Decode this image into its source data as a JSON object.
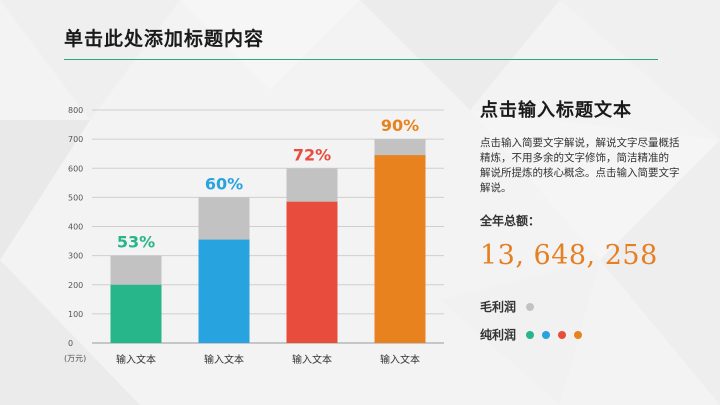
{
  "slide": {
    "title": "单击此处添加标题内容"
  },
  "panel": {
    "title": "点击输入标题文本",
    "body": "点击输入简要文字解说，解说文字尽量概括精炼，不用多余的文字修饰，简洁精准的 解说所提炼的核心概念。点击输入简要文字解说。",
    "total_label": "全年总额：",
    "total_value": "13, 648, 258"
  },
  "legend": {
    "gross_label": "毛利润",
    "net_label": "纯利润"
  },
  "colors": {
    "accent": "#2ea77d",
    "gross": "#c2c2c2",
    "bar_colors": [
      "#27b58a",
      "#27a3e0",
      "#e84c3d",
      "#e8821f"
    ]
  },
  "chart_data": {
    "type": "bar",
    "stacked_overlay": true,
    "categories": [
      "输入文本",
      "输入文本",
      "输入文本",
      "输入文本"
    ],
    "y_unit_label": "(万元)",
    "ylim": [
      0,
      800
    ],
    "yticks": [
      0,
      100,
      200,
      300,
      400,
      500,
      600,
      700,
      800
    ],
    "grid": true,
    "series": [
      {
        "name": "毛利润",
        "values": [
          300,
          500,
          600,
          700
        ]
      },
      {
        "name": "纯利润",
        "values": [
          200,
          355,
          485,
          645
        ]
      }
    ],
    "data_labels": [
      "53%",
      "60%",
      "72%",
      "90%"
    ]
  }
}
